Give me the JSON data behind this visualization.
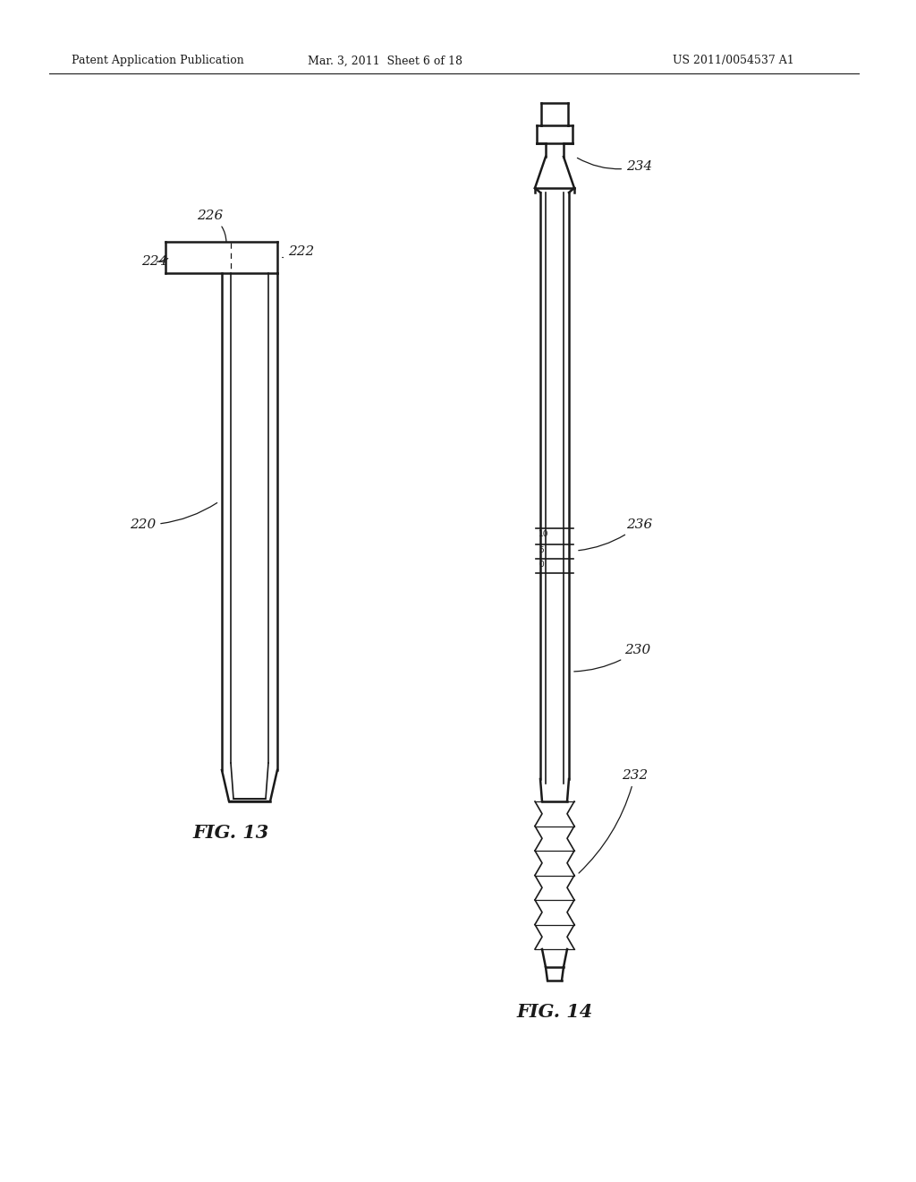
{
  "background_color": "#ffffff",
  "header_left": "Patent Application Publication",
  "header_center": "Mar. 3, 2011  Sheet 6 of 18",
  "header_right": "US 2011/0054537 A1",
  "fig13_caption": "FIG. 13",
  "fig14_caption": "FIG. 14"
}
